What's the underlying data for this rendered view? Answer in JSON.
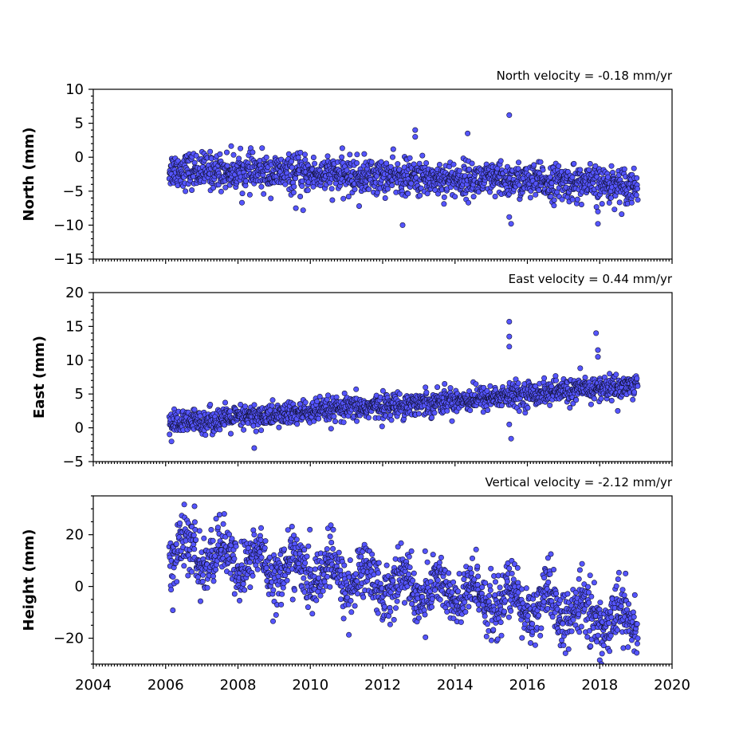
{
  "chart_data": [
    {
      "type": "scatter",
      "title": "North velocity = -0.18 mm/yr",
      "ylabel": "North (mm)",
      "xlim": [
        2004,
        2020
      ],
      "ylim": [
        -15,
        10
      ],
      "yticks": [
        "10",
        "5",
        "0",
        "−5",
        "−10",
        "−15"
      ],
      "yticks_values": [
        10,
        5,
        0,
        -5,
        -10,
        -15
      ],
      "velocity_mm_per_yr": -0.18,
      "x_start": 2006.1,
      "x_end": 2019.05,
      "trend_start": -1.8,
      "scatter_sd": 1.3,
      "outliers": [
        [
          2012.55,
          -10.0
        ],
        [
          2012.9,
          4.0
        ],
        [
          2012.9,
          3.0
        ],
        [
          2014.35,
          3.5
        ],
        [
          2015.5,
          6.2
        ],
        [
          2015.5,
          -8.8
        ],
        [
          2015.55,
          -9.8
        ],
        [
          2017.95,
          -8.0
        ],
        [
          2017.95,
          -9.8
        ],
        [
          2009.6,
          -7.5
        ],
        [
          2009.8,
          -7.8
        ],
        [
          2011.35,
          -7.2
        ]
      ]
    },
    {
      "type": "scatter",
      "title": "East velocity = 0.44 mm/yr",
      "ylabel": "East (mm)",
      "xlim": [
        2004,
        2020
      ],
      "ylim": [
        -5,
        20
      ],
      "yticks": [
        "20",
        "15",
        "10",
        "5",
        "0",
        "−5"
      ],
      "yticks_values": [
        20,
        15,
        10,
        5,
        0,
        -5
      ],
      "velocity_mm_per_yr": 0.44,
      "x_start": 2006.1,
      "x_end": 2019.05,
      "trend_start": 0.6,
      "scatter_sd": 0.9,
      "outliers": [
        [
          2015.5,
          15.7
        ],
        [
          2015.5,
          13.5
        ],
        [
          2015.5,
          12.0
        ],
        [
          2015.55,
          -1.6
        ],
        [
          2015.5,
          0.5
        ],
        [
          2017.9,
          14.0
        ],
        [
          2017.95,
          11.5
        ],
        [
          2017.95,
          10.5
        ],
        [
          2008.45,
          -3.0
        ],
        [
          2018.5,
          2.5
        ]
      ]
    },
    {
      "type": "scatter",
      "title": "Vertical velocity = -2.12 mm/yr",
      "ylabel": "Height (mm)",
      "xlim": [
        2004,
        2020
      ],
      "ylim": [
        -30,
        35
      ],
      "yticks": [
        "20",
        "0",
        "−20"
      ],
      "yticks_values": [
        20,
        0,
        -20
      ],
      "velocity_mm_per_yr": -2.12,
      "x_start": 2006.1,
      "x_end": 2019.05,
      "trend_start": 14.0,
      "scatter_sd": 5.5,
      "outliers": [
        [
          2006.2,
          -9.2
        ],
        [
          2006.8,
          31.0
        ],
        [
          2018.0,
          -28.5
        ],
        [
          2018.05,
          -30.0
        ],
        [
          2016.65,
          12.5
        ]
      ],
      "xticks": [
        "2004",
        "2006",
        "2008",
        "2010",
        "2012",
        "2014",
        "2016",
        "2018",
        "2020"
      ],
      "xticks_values": [
        2004,
        2006,
        2008,
        2010,
        2012,
        2014,
        2016,
        2018,
        2020
      ]
    }
  ]
}
